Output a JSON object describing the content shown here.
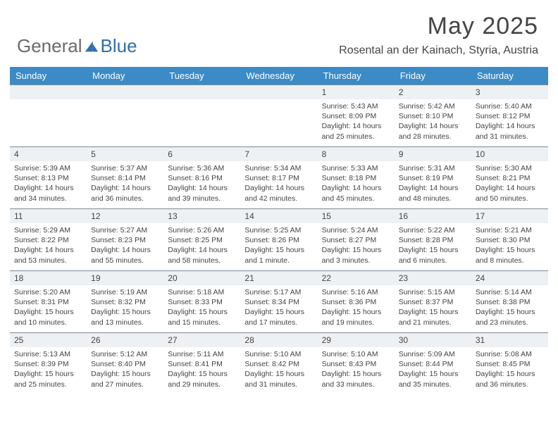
{
  "logo": {
    "text1": "General",
    "text2": "Blue"
  },
  "title": "May 2025",
  "location": "Rosental an der Kainach, Styria, Austria",
  "colors": {
    "header_bg": "#3b8bc7",
    "header_text": "#ffffff",
    "daynum_bg": "#eef1f3",
    "border": "#7c8894",
    "text": "#444444",
    "logo_gray": "#6b6b6b",
    "logo_blue": "#2f6fad"
  },
  "weekdays": [
    "Sunday",
    "Monday",
    "Tuesday",
    "Wednesday",
    "Thursday",
    "Friday",
    "Saturday"
  ],
  "weeks": [
    [
      null,
      null,
      null,
      null,
      {
        "n": "1",
        "sr": "5:43 AM",
        "ss": "8:09 PM",
        "dl": "14 hours and 25 minutes."
      },
      {
        "n": "2",
        "sr": "5:42 AM",
        "ss": "8:10 PM",
        "dl": "14 hours and 28 minutes."
      },
      {
        "n": "3",
        "sr": "5:40 AM",
        "ss": "8:12 PM",
        "dl": "14 hours and 31 minutes."
      }
    ],
    [
      {
        "n": "4",
        "sr": "5:39 AM",
        "ss": "8:13 PM",
        "dl": "14 hours and 34 minutes."
      },
      {
        "n": "5",
        "sr": "5:37 AM",
        "ss": "8:14 PM",
        "dl": "14 hours and 36 minutes."
      },
      {
        "n": "6",
        "sr": "5:36 AM",
        "ss": "8:16 PM",
        "dl": "14 hours and 39 minutes."
      },
      {
        "n": "7",
        "sr": "5:34 AM",
        "ss": "8:17 PM",
        "dl": "14 hours and 42 minutes."
      },
      {
        "n": "8",
        "sr": "5:33 AM",
        "ss": "8:18 PM",
        "dl": "14 hours and 45 minutes."
      },
      {
        "n": "9",
        "sr": "5:31 AM",
        "ss": "8:19 PM",
        "dl": "14 hours and 48 minutes."
      },
      {
        "n": "10",
        "sr": "5:30 AM",
        "ss": "8:21 PM",
        "dl": "14 hours and 50 minutes."
      }
    ],
    [
      {
        "n": "11",
        "sr": "5:29 AM",
        "ss": "8:22 PM",
        "dl": "14 hours and 53 minutes."
      },
      {
        "n": "12",
        "sr": "5:27 AM",
        "ss": "8:23 PM",
        "dl": "14 hours and 55 minutes."
      },
      {
        "n": "13",
        "sr": "5:26 AM",
        "ss": "8:25 PM",
        "dl": "14 hours and 58 minutes."
      },
      {
        "n": "14",
        "sr": "5:25 AM",
        "ss": "8:26 PM",
        "dl": "15 hours and 1 minute."
      },
      {
        "n": "15",
        "sr": "5:24 AM",
        "ss": "8:27 PM",
        "dl": "15 hours and 3 minutes."
      },
      {
        "n": "16",
        "sr": "5:22 AM",
        "ss": "8:28 PM",
        "dl": "15 hours and 6 minutes."
      },
      {
        "n": "17",
        "sr": "5:21 AM",
        "ss": "8:30 PM",
        "dl": "15 hours and 8 minutes."
      }
    ],
    [
      {
        "n": "18",
        "sr": "5:20 AM",
        "ss": "8:31 PM",
        "dl": "15 hours and 10 minutes."
      },
      {
        "n": "19",
        "sr": "5:19 AM",
        "ss": "8:32 PM",
        "dl": "15 hours and 13 minutes."
      },
      {
        "n": "20",
        "sr": "5:18 AM",
        "ss": "8:33 PM",
        "dl": "15 hours and 15 minutes."
      },
      {
        "n": "21",
        "sr": "5:17 AM",
        "ss": "8:34 PM",
        "dl": "15 hours and 17 minutes."
      },
      {
        "n": "22",
        "sr": "5:16 AM",
        "ss": "8:36 PM",
        "dl": "15 hours and 19 minutes."
      },
      {
        "n": "23",
        "sr": "5:15 AM",
        "ss": "8:37 PM",
        "dl": "15 hours and 21 minutes."
      },
      {
        "n": "24",
        "sr": "5:14 AM",
        "ss": "8:38 PM",
        "dl": "15 hours and 23 minutes."
      }
    ],
    [
      {
        "n": "25",
        "sr": "5:13 AM",
        "ss": "8:39 PM",
        "dl": "15 hours and 25 minutes."
      },
      {
        "n": "26",
        "sr": "5:12 AM",
        "ss": "8:40 PM",
        "dl": "15 hours and 27 minutes."
      },
      {
        "n": "27",
        "sr": "5:11 AM",
        "ss": "8:41 PM",
        "dl": "15 hours and 29 minutes."
      },
      {
        "n": "28",
        "sr": "5:10 AM",
        "ss": "8:42 PM",
        "dl": "15 hours and 31 minutes."
      },
      {
        "n": "29",
        "sr": "5:10 AM",
        "ss": "8:43 PM",
        "dl": "15 hours and 33 minutes."
      },
      {
        "n": "30",
        "sr": "5:09 AM",
        "ss": "8:44 PM",
        "dl": "15 hours and 35 minutes."
      },
      {
        "n": "31",
        "sr": "5:08 AM",
        "ss": "8:45 PM",
        "dl": "15 hours and 36 minutes."
      }
    ]
  ],
  "labels": {
    "sunrise": "Sunrise:",
    "sunset": "Sunset:",
    "daylight": "Daylight:"
  }
}
